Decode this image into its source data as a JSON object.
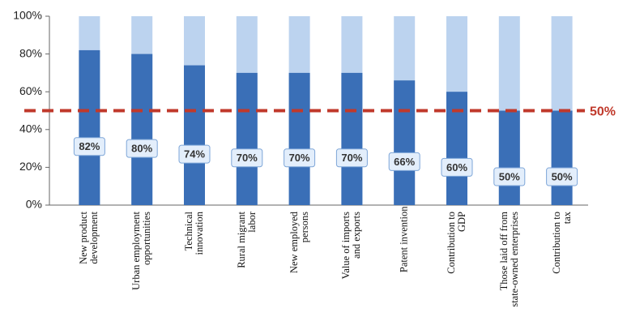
{
  "chart_data": {
    "type": "bar",
    "categories": [
      "New product\ndevelopment",
      "Urban employment\nopportunities",
      "Technical\ninnovation",
      "Rural migrant\nlabor",
      "New employed\npersons",
      "Value of imports\nand exports",
      "Patent invention",
      "Contribution to\nGDP",
      "Those laid off from\nstate-owned enterprises",
      "Contribution to\ntax"
    ],
    "values": [
      82,
      80,
      74,
      70,
      70,
      70,
      66,
      60,
      50,
      50
    ],
    "value_labels": [
      "82%",
      "80%",
      "74%",
      "70%",
      "70%",
      "70%",
      "66%",
      "60%",
      "50%",
      "50%"
    ],
    "color": "#3a6fb7",
    "track_color": "#bcd3ef",
    "ylim": [
      0,
      100
    ],
    "yticks": [
      {
        "value": 0,
        "label": "0%"
      },
      {
        "value": 20,
        "label": "20%"
      },
      {
        "value": 40,
        "label": "40%"
      },
      {
        "value": 60,
        "label": "60%"
      },
      {
        "value": 80,
        "label": "80%"
      },
      {
        "value": 100,
        "label": "100%"
      }
    ],
    "reference_line": {
      "value": 50,
      "label": "50%",
      "color": "#c0392b"
    }
  }
}
